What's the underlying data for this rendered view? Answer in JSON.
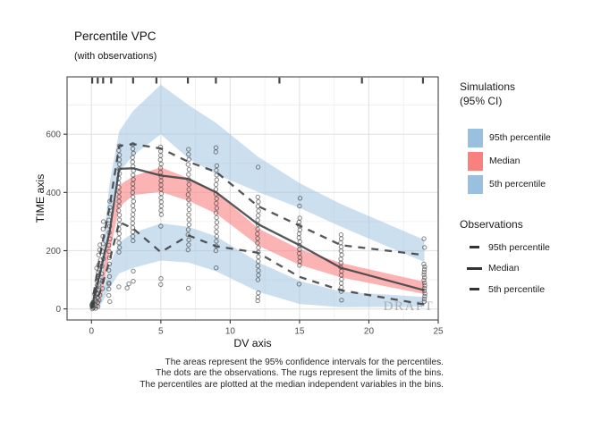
{
  "title": "Percentile VPC",
  "subtitle": "(with observations)",
  "watermark": "DRAFT",
  "caption": {
    "lines": [
      "The areas represent the 95% confidence intervals for the percentiles.",
      "The dots are the observations. The rugs represent the limits of the bins.",
      "The percentiles are plotted at the median independent variables in the bins."
    ]
  },
  "axes": {
    "x": {
      "label": "DV axis",
      "ticks": [
        0,
        5,
        10,
        15,
        20,
        25
      ],
      "minor": [
        2.5,
        7.5,
        12.5,
        17.5,
        22.5
      ],
      "domain": [
        -1.76,
        25.0
      ]
    },
    "y": {
      "label": "TIME axis",
      "ticks": [
        0,
        200,
        400,
        600
      ],
      "minor": [
        100,
        300,
        500,
        700
      ],
      "domain": [
        -38,
        797
      ]
    }
  },
  "legend": {
    "simulations": {
      "title_lines": [
        "Simulations",
        "(95% CI)"
      ],
      "items": [
        {
          "label": "95th percentile",
          "color": "#9ac0e0"
        },
        {
          "label": "Median",
          "color": "#fa8080"
        },
        {
          "label": "5th percentile",
          "color": "#9ac0e0"
        }
      ]
    },
    "observations": {
      "title": "Observations",
      "items": [
        {
          "label": "95th percentile",
          "style": "dashed"
        },
        {
          "label": "Median",
          "style": "solid"
        },
        {
          "label": "5th percentile",
          "style": "dashed"
        }
      ]
    }
  },
  "colors": {
    "band_blue": "#9ac0e0",
    "band_red": "#fa8080",
    "line_dark": "#3d4043",
    "grid_major": "#e4e4e4",
    "grid_minor": "#f1f1f1",
    "axis_tick": "#333333",
    "tick_label": "#4d4d4d",
    "panel_border": "#474747",
    "watermark_gray": "#9f9f9f",
    "dot_stroke": "#333333"
  },
  "chart_data": {
    "type": "area",
    "description": "Visual predictive check: simulated 95% CI bands for 5th/50th/95th percentiles (areas), observed percentile lines, observation dots, bin-limit rugs",
    "xlabel": "DV axis",
    "ylabel": "TIME axis",
    "xlim": [
      -1.76,
      25.0
    ],
    "ylim": [
      -38,
      797
    ],
    "sim_bands": [
      {
        "name": "95th percentile CI",
        "color": "#9ac0e0",
        "opacity": 0.5,
        "x": [
          0.45,
          0.8,
          1.3,
          2,
          3,
          5,
          7,
          9,
          12,
          15,
          18,
          24
        ],
        "hi": [
          5,
          200,
          430,
          610,
          680,
          770,
          700,
          638,
          523,
          432,
          360,
          237
        ],
        "lo": [
          0,
          95,
          305,
          470,
          527,
          600,
          516,
          462,
          402,
          347,
          282,
          161
        ]
      },
      {
        "name": "Median CI",
        "color": "#fa8080",
        "opacity": 0.6,
        "x": [
          0.45,
          0.8,
          1.3,
          2,
          3,
          5,
          7,
          9,
          12,
          15,
          18,
          24
        ],
        "hi": [
          3,
          120,
          285,
          424,
          456,
          486,
          449,
          401,
          277,
          205,
          158,
          93
        ],
        "lo": [
          0,
          58,
          192,
          349,
          391,
          402,
          371,
          327,
          218,
          151,
          108,
          51
        ]
      },
      {
        "name": "5th percentile CI",
        "color": "#9ac0e0",
        "opacity": 0.5,
        "x": [
          0.45,
          0.8,
          1.3,
          2,
          3,
          5,
          7,
          9,
          12,
          15,
          18,
          24
        ],
        "hi": [
          2,
          62,
          152,
          228,
          261,
          294,
          282,
          249,
          161,
          96,
          59,
          41
        ],
        "lo": [
          0,
          24,
          72,
          122,
          141,
          166,
          159,
          129,
          59,
          17,
          6,
          7
        ]
      }
    ],
    "obs_lines": [
      {
        "name": "95th percentile",
        "style": "dashed",
        "points": [
          [
            0,
            5
          ],
          [
            0.6,
            180
          ],
          [
            1.3,
            350
          ],
          [
            2,
            560
          ],
          [
            3,
            566
          ],
          [
            5,
            551
          ],
          [
            7,
            505
          ],
          [
            9,
            470
          ],
          [
            12,
            353
          ],
          [
            15,
            286
          ],
          [
            18,
            219
          ],
          [
            24,
            185
          ]
        ]
      },
      {
        "name": "Median",
        "style": "solid",
        "points": [
          [
            0,
            3
          ],
          [
            0.6,
            120
          ],
          [
            1.3,
            265
          ],
          [
            2,
            481
          ],
          [
            3,
            483
          ],
          [
            5,
            458
          ],
          [
            7,
            446
          ],
          [
            9,
            400
          ],
          [
            12,
            291
          ],
          [
            15,
            219
          ],
          [
            18,
            141
          ],
          [
            24,
            64
          ]
        ]
      },
      {
        "name": "5th percentile",
        "style": "dashed",
        "points": [
          [
            0,
            2
          ],
          [
            0.6,
            55
          ],
          [
            1.3,
            165
          ],
          [
            2,
            298
          ],
          [
            3,
            276
          ],
          [
            5,
            195
          ],
          [
            7,
            252
          ],
          [
            9,
            215
          ],
          [
            12,
            193
          ],
          [
            15,
            110
          ],
          [
            18,
            64
          ],
          [
            24,
            15
          ]
        ]
      }
    ],
    "dot_columns": [
      {
        "x": 0.08,
        "min": 0,
        "max": 20,
        "n": 6,
        "jx": 0.06,
        "extra": []
      },
      {
        "x": 0.25,
        "min": 2,
        "max": 60,
        "n": 8,
        "jx": 0.09,
        "extra": []
      },
      {
        "x": 0.42,
        "min": 8,
        "max": 140,
        "n": 10,
        "jx": 0.08,
        "extra": []
      },
      {
        "x": 0.58,
        "min": 30,
        "max": 220,
        "n": 12,
        "jx": 0.07,
        "extra": []
      },
      {
        "x": 0.8,
        "min": 70,
        "max": 300,
        "n": 10,
        "jx": 0.06,
        "extra": []
      },
      {
        "x": 1.3,
        "min": 25,
        "max": 370,
        "n": 17,
        "jx": 0.05,
        "extra": [
          85
        ]
      },
      {
        "x": 2,
        "min": 195,
        "max": 560,
        "n": 24,
        "jx": 0.04,
        "extra": [
          76
        ]
      },
      {
        "x": 3,
        "min": 234,
        "max": 565,
        "n": 23,
        "jx": 0.04,
        "extra": [
          95,
          130
        ]
      },
      {
        "x": 2.6,
        "min": 86,
        "max": 86,
        "n": 1,
        "jx": 0.1,
        "extra": [
          72
        ]
      },
      {
        "x": 5,
        "min": 324,
        "max": 556,
        "n": 17,
        "jx": 0.04,
        "extra": [
          284,
          104,
          84
        ]
      },
      {
        "x": 7,
        "min": 203,
        "max": 548,
        "n": 21,
        "jx": 0.04,
        "extra": [
          71
        ]
      },
      {
        "x": 9,
        "min": 200,
        "max": 492,
        "n": 19,
        "jx": 0.04,
        "extra": [
          554,
          539,
          141
        ]
      },
      {
        "x": 12,
        "min": 100,
        "max": 384,
        "n": 19,
        "jx": 0.04,
        "extra": [
          487,
          55,
          40,
          28
        ]
      },
      {
        "x": 15,
        "min": 150,
        "max": 312,
        "n": 13,
        "jx": 0.04,
        "extra": [
          380,
          353,
          85
        ]
      },
      {
        "x": 18,
        "min": 60,
        "max": 255,
        "n": 15,
        "jx": 0.04,
        "extra": [
          30
        ]
      },
      {
        "x": 24,
        "min": 25,
        "max": 154,
        "n": 15,
        "jx": 0.04,
        "extra": [
          241,
          211
        ]
      }
    ],
    "rug_x": [
      0.05,
      0.45,
      0.84,
      1.42,
      3.0,
      4.68,
      6.95,
      8.97,
      13.55,
      19.5,
      23.9
    ]
  }
}
